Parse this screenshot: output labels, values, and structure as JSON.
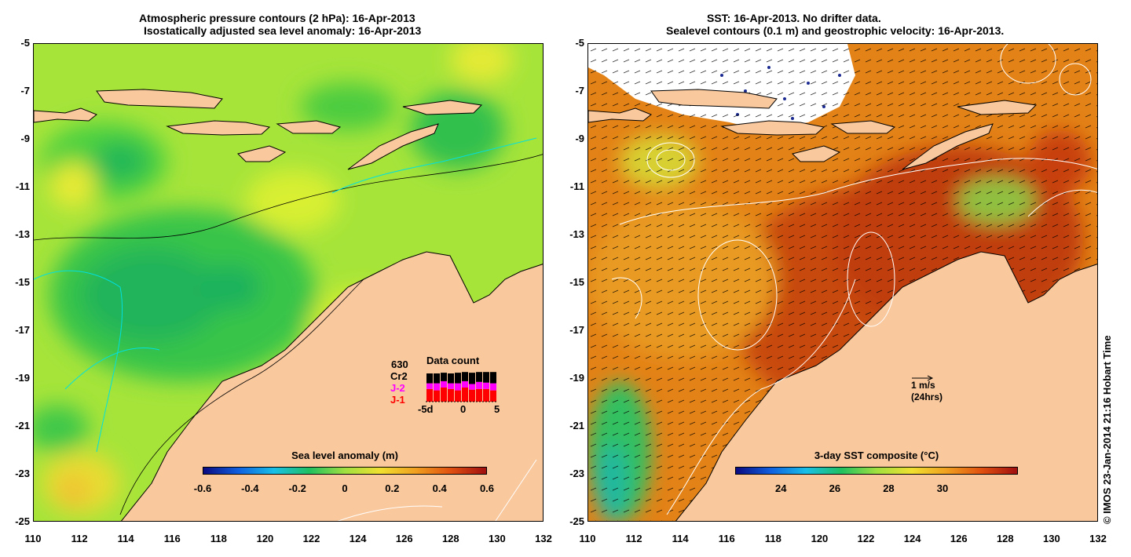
{
  "left_panel": {
    "title_line1": "Atmospheric pressure contours (2 hPa): 16-Apr-2013",
    "title_line2": "Isostatically adjusted sea level anomaly: 16-Apr-2013",
    "colorbar": {
      "label": "Sea level anomaly (m)",
      "ticks": [
        "-0.6",
        "-0.4",
        "-0.2",
        "0",
        "0.2",
        "0.4",
        "0.6"
      ]
    },
    "data_count": {
      "title": "Data count",
      "total": "630",
      "missions": [
        "Cr2",
        "J-2",
        "J-1"
      ],
      "mission_colors": [
        "#000000",
        "#ff00ff",
        "#ff0000"
      ],
      "xticks": [
        "-5d",
        "0",
        "5"
      ]
    }
  },
  "right_panel": {
    "title_line1": "SST: 16-Apr-2013. No drifter data.",
    "title_line2": "Sealevel contours (0.1 m) and geostrophic velocity: 16-Apr-2013.",
    "colorbar": {
      "label": "3-day SST composite (°C)",
      "ticks": [
        "24",
        "26",
        "28",
        "30"
      ]
    },
    "vector_scale": {
      "speed": "1 m/s",
      "duration": "(24hrs)"
    }
  },
  "axes": {
    "lon_ticks": [
      "110",
      "112",
      "114",
      "116",
      "118",
      "120",
      "122",
      "124",
      "126",
      "128",
      "130",
      "132"
    ],
    "lat_ticks": [
      "-5",
      "-7",
      "-9",
      "-11",
      "-13",
      "-15",
      "-17",
      "-19",
      "-21",
      "-23",
      "-25"
    ],
    "lon_range": [
      110,
      132
    ],
    "lat_range": [
      -25,
      -5
    ]
  },
  "credit": "© IMOS 23-Jan-2014 21:16 Hobart Time",
  "colors": {
    "land": "#f9c89d",
    "slа_base": "#a8e838",
    "sst_base": "#e07a10"
  }
}
